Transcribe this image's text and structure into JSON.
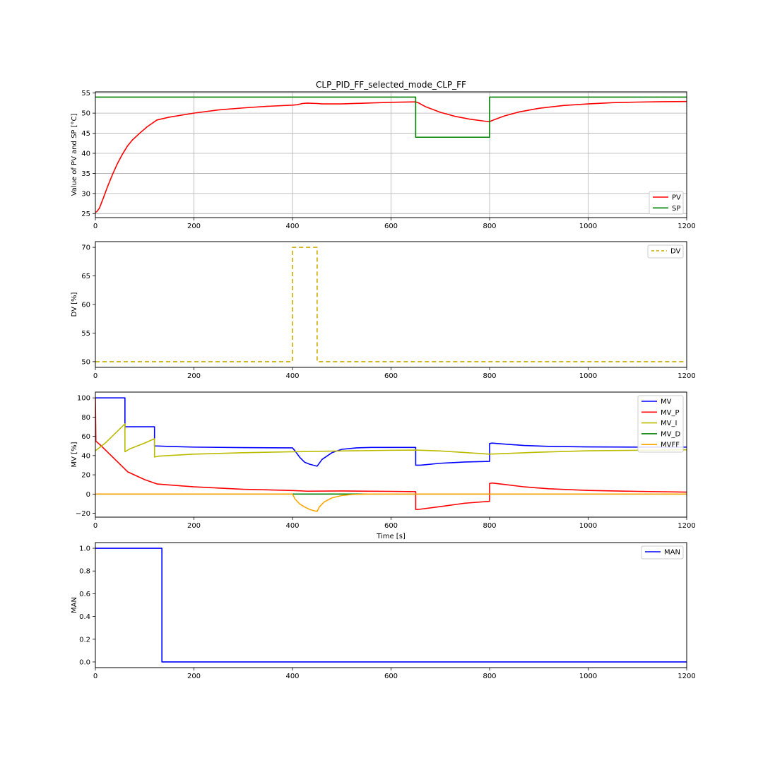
{
  "chart_data": [
    {
      "type": "line",
      "title": "CLP_PID_FF_selected_mode_CLP_FF",
      "xlabel": "",
      "ylabel": "Value of PV and SP [°C]",
      "xlim": [
        0,
        1200
      ],
      "ylim": [
        24,
        55.3
      ],
      "xticks": [
        "0",
        "200",
        "400",
        "600",
        "800",
        "1000",
        "1200"
      ],
      "yticks": [
        "25",
        "30",
        "35",
        "40",
        "45",
        "50",
        "55"
      ],
      "grid": true,
      "legend": "lower-right",
      "series": [
        {
          "name": "PV",
          "color": "#ff0000",
          "dash": "",
          "x": [
            0,
            3,
            8,
            15,
            25,
            35,
            45,
            55,
            65,
            75,
            90,
            105,
            125,
            150,
            200,
            250,
            300,
            350,
            400,
            410,
            420,
            430,
            450,
            460,
            500,
            550,
            600,
            650,
            655,
            670,
            700,
            730,
            760,
            790,
            800,
            810,
            830,
            860,
            900,
            950,
            1000,
            1050,
            1100,
            1150,
            1200
          ],
          "y": [
            25.3,
            25.5,
            26.3,
            28.5,
            31.8,
            34.8,
            37.5,
            39.8,
            41.8,
            43.3,
            45.0,
            46.6,
            48.3,
            49.0,
            50.0,
            50.8,
            51.3,
            51.7,
            52.0,
            52.1,
            52.4,
            52.5,
            52.4,
            52.3,
            52.3,
            52.5,
            52.7,
            52.8,
            52.6,
            51.6,
            50.2,
            49.2,
            48.5,
            48.0,
            47.9,
            48.4,
            49.3,
            50.3,
            51.2,
            51.9,
            52.3,
            52.6,
            52.75,
            52.85,
            52.9
          ]
        },
        {
          "name": "SP",
          "color": "#008000",
          "dash": "",
          "x": [
            0,
            650,
            650,
            800,
            800,
            1200
          ],
          "y": [
            54,
            54,
            44,
            44,
            54,
            54
          ]
        }
      ]
    },
    {
      "type": "line",
      "title": "",
      "xlabel": "",
      "ylabel": "DV [%]",
      "xlim": [
        0,
        1200
      ],
      "ylim": [
        49,
        71
      ],
      "xticks": [
        "0",
        "200",
        "400",
        "600",
        "800",
        "1000",
        "1200"
      ],
      "yticks": [
        "50",
        "55",
        "60",
        "65",
        "70"
      ],
      "grid": false,
      "legend": "top-right",
      "series": [
        {
          "name": "DV",
          "color": "#ccaa00",
          "dash": "6,4",
          "x": [
            0,
            400,
            400,
            450,
            450,
            1200
          ],
          "y": [
            50,
            50,
            70,
            70,
            50,
            50
          ]
        }
      ]
    },
    {
      "type": "line",
      "title": "",
      "xlabel": "Time [s]",
      "ylabel": "MV [%]",
      "xlim": [
        0,
        1200
      ],
      "ylim": [
        -24,
        106
      ],
      "xticks": [
        "0",
        "200",
        "400",
        "600",
        "800",
        "1000",
        "1200"
      ],
      "yticks": [
        "−20",
        "0",
        "20",
        "40",
        "60",
        "80",
        "100"
      ],
      "grid": false,
      "legend": "top-right",
      "series": [
        {
          "name": "MV",
          "color": "#0000ff",
          "dash": "",
          "x": [
            0,
            60,
            60,
            120,
            120,
            125,
            150,
            200,
            300,
            400,
            405,
            415,
            425,
            435,
            450,
            460,
            480,
            500,
            530,
            560,
            600,
            650,
            650,
            660,
            700,
            750,
            800,
            800,
            805,
            830,
            870,
            920,
            1000,
            1100,
            1200
          ],
          "y": [
            100,
            100,
            70,
            70,
            50,
            50,
            49.5,
            48.8,
            48.3,
            48,
            45,
            38,
            33,
            31,
            29,
            36,
            43,
            46.5,
            48,
            48.5,
            48.5,
            48.5,
            30,
            30,
            32,
            33.3,
            34,
            52.5,
            53,
            52,
            50.5,
            49.6,
            49,
            48.8,
            48.8
          ]
        },
        {
          "name": "MV_P",
          "color": "#ff0000",
          "dash": "",
          "x": [
            0,
            1,
            10,
            20,
            40,
            66,
            100,
            125,
            150,
            200,
            300,
            400,
            430,
            500,
            600,
            650,
            650,
            655,
            700,
            750,
            800,
            800,
            805,
            830,
            870,
            920,
            1000,
            1100,
            1200
          ],
          "y": [
            100,
            55,
            51,
            46,
            36,
            23,
            15,
            10.5,
            9.5,
            7.5,
            5,
            3.7,
            3,
            3.2,
            2.8,
            2.5,
            -16,
            -16,
            -13,
            -9.5,
            -7.5,
            11,
            11.5,
            10,
            7.5,
            5.5,
            3.8,
            2.8,
            2
          ]
        },
        {
          "name": "MV_I",
          "color": "#bbbb00",
          "dash": "",
          "x": [
            0,
            20,
            40,
            60,
            60,
            70,
            100,
            120,
            120,
            130,
            200,
            300,
            400,
            500,
            600,
            650,
            700,
            800,
            900,
            1000,
            1100,
            1200
          ],
          "y": [
            45,
            53,
            63,
            73,
            44,
            47,
            53,
            57.5,
            38.5,
            39.5,
            41.5,
            43,
            44,
            44.8,
            45.5,
            45.7,
            44.8,
            41.5,
            43.5,
            45,
            45.5,
            46
          ]
        },
        {
          "name": "MV_D",
          "color": "#008000",
          "dash": "",
          "x": [
            0,
            1200
          ],
          "y": [
            0,
            0
          ]
        },
        {
          "name": "MVFF",
          "color": "#ffa500",
          "dash": "",
          "x": [
            0,
            400,
            405,
            415,
            425,
            435,
            445,
            450,
            455,
            465,
            480,
            500,
            520,
            550,
            600,
            1200
          ],
          "y": [
            0,
            0,
            -5,
            -10.5,
            -13.5,
            -16,
            -17.5,
            -18,
            -13,
            -8,
            -4,
            -1.5,
            -0.5,
            0,
            0,
            0
          ]
        }
      ]
    },
    {
      "type": "line",
      "title": "",
      "xlabel": "",
      "ylabel": "MAN",
      "xlim": [
        0,
        1200
      ],
      "ylim": [
        -0.05,
        1.05
      ],
      "xticks": [
        "0",
        "200",
        "400",
        "600",
        "800",
        "1000",
        "1200"
      ],
      "yticks": [
        "0.0",
        "0.2",
        "0.4",
        "0.6",
        "0.8",
        "1.0"
      ],
      "grid": false,
      "legend": "top-right",
      "series": [
        {
          "name": "MAN",
          "color": "#0000ff",
          "dash": "",
          "x": [
            0,
            135,
            135,
            1200
          ],
          "y": [
            1,
            1,
            0,
            0
          ]
        }
      ]
    }
  ]
}
